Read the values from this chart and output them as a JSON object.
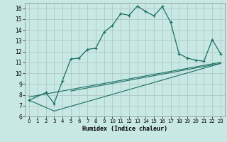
{
  "xlabel": "Humidex (Indice chaleur)",
  "bg_color": "#c8e8e4",
  "grid_color": "#b0c8c8",
  "line_color": "#1a6e62",
  "xlim": [
    -0.5,
    23.5
  ],
  "ylim": [
    6,
    16.5
  ],
  "yticks": [
    6,
    7,
    8,
    9,
    10,
    11,
    12,
    13,
    14,
    15,
    16
  ],
  "xticks": [
    0,
    1,
    2,
    3,
    4,
    5,
    6,
    7,
    8,
    9,
    10,
    11,
    12,
    13,
    14,
    15,
    16,
    17,
    18,
    19,
    20,
    21,
    22,
    23
  ],
  "series1_x": [
    0,
    2,
    3,
    4,
    5,
    6,
    7,
    8,
    9,
    10,
    11,
    12,
    13,
    14,
    15,
    16,
    17,
    18,
    19,
    20,
    21,
    22,
    23
  ],
  "series1_y": [
    7.5,
    8.2,
    7.2,
    9.3,
    11.3,
    11.4,
    12.2,
    12.3,
    13.8,
    14.4,
    15.5,
    15.35,
    16.2,
    15.7,
    15.3,
    16.15,
    14.7,
    11.8,
    11.4,
    11.2,
    11.1,
    13.1,
    11.8
  ],
  "series2_x": [
    0,
    3,
    23
  ],
  "series2_y": [
    7.5,
    6.5,
    10.9
  ],
  "series3_x": [
    0,
    23
  ],
  "series3_y": [
    7.8,
    11.0
  ],
  "series4_x": [
    5,
    23
  ],
  "series4_y": [
    8.35,
    10.9
  ]
}
